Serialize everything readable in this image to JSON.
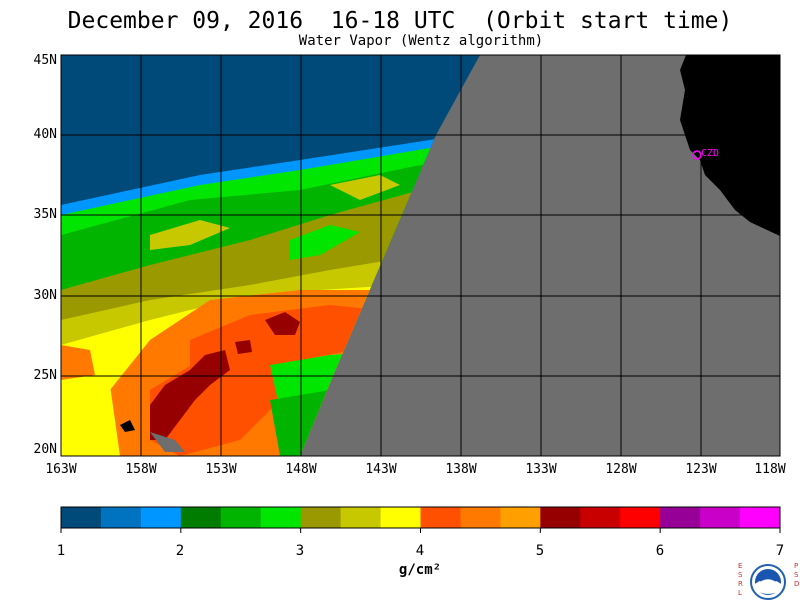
{
  "title": "December 09, 2016  16-18 UTC  (Orbit start time)",
  "subtitle": "Water Vapor (Wentz algorithm)",
  "lat_labels": [
    "45N",
    "40N",
    "35N",
    "30N",
    "25N",
    "20N"
  ],
  "lon_labels": [
    "163W",
    "158W",
    "153W",
    "148W",
    "143W",
    "138W",
    "133W",
    "128W",
    "123W",
    "118W"
  ],
  "station_label": "CZD",
  "colorbar": {
    "tick_labels": [
      "1",
      "2",
      "3",
      "4",
      "5",
      "6",
      "7"
    ],
    "units": "g/cm²",
    "colors": [
      "#004a7a",
      "#0073c0",
      "#0096ff",
      "#007c00",
      "#00b400",
      "#00e600",
      "#9a9a00",
      "#c8c800",
      "#ffff00",
      "#ff5000",
      "#ff7800",
      "#ffa000",
      "#960000",
      "#c80000",
      "#ff0000",
      "#960096",
      "#c800c8",
      "#ff00ff"
    ]
  },
  "colors": {
    "no_data": "#6e6e6e",
    "land": "#000000",
    "station": "#ff00ff"
  },
  "logo_side_left": [
    "E",
    "S",
    "R",
    "L"
  ],
  "logo_side_right": [
    "P",
    "S",
    "D"
  ]
}
